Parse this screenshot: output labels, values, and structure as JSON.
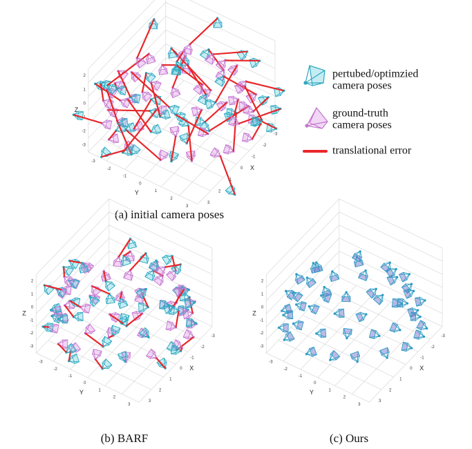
{
  "legend": [
    {
      "lines": [
        "pertubed/optimzied",
        "camera poses"
      ]
    },
    {
      "lines": [
        "ground-truth",
        "camera poses"
      ]
    },
    {
      "lines": [
        "translational error"
      ]
    }
  ],
  "panels": [
    {
      "caption": "(a) initial camera poses",
      "x_label": "X",
      "y_label": "Y",
      "z_label": "Z",
      "x_ticks": [
        "-3",
        "-2",
        "-1",
        "0",
        "1",
        "2",
        "3"
      ],
      "y_ticks": [
        "-3",
        "-2",
        "-1",
        "0",
        "1",
        "2",
        "3"
      ],
      "z_ticks": [
        "2",
        "1",
        "0",
        "-1",
        "-2",
        "-3"
      ]
    },
    {
      "caption": "(b) BARF",
      "x_label": "X",
      "y_label": "Y",
      "z_label": "Z",
      "x_ticks": [
        "-3",
        "-2",
        "-1",
        "0",
        "1",
        "2",
        "3"
      ],
      "y_ticks": [
        "-3",
        "-2",
        "-1",
        "0",
        "1",
        "2",
        "3"
      ],
      "z_ticks": [
        "2",
        "1",
        "0",
        "-1",
        "-2",
        "-3"
      ]
    },
    {
      "caption": "(c) Ours",
      "x_label": "X",
      "y_label": "Y",
      "z_label": "Z",
      "x_ticks": [
        "-3",
        "-2",
        "-1",
        "0",
        "1",
        "2",
        "3"
      ],
      "y_ticks": [
        "-3",
        "-2",
        "-1",
        "0",
        "1",
        "2",
        "3"
      ],
      "z_ticks": [
        "2",
        "1",
        "0",
        "-1",
        "-2",
        "-3"
      ]
    }
  ]
}
